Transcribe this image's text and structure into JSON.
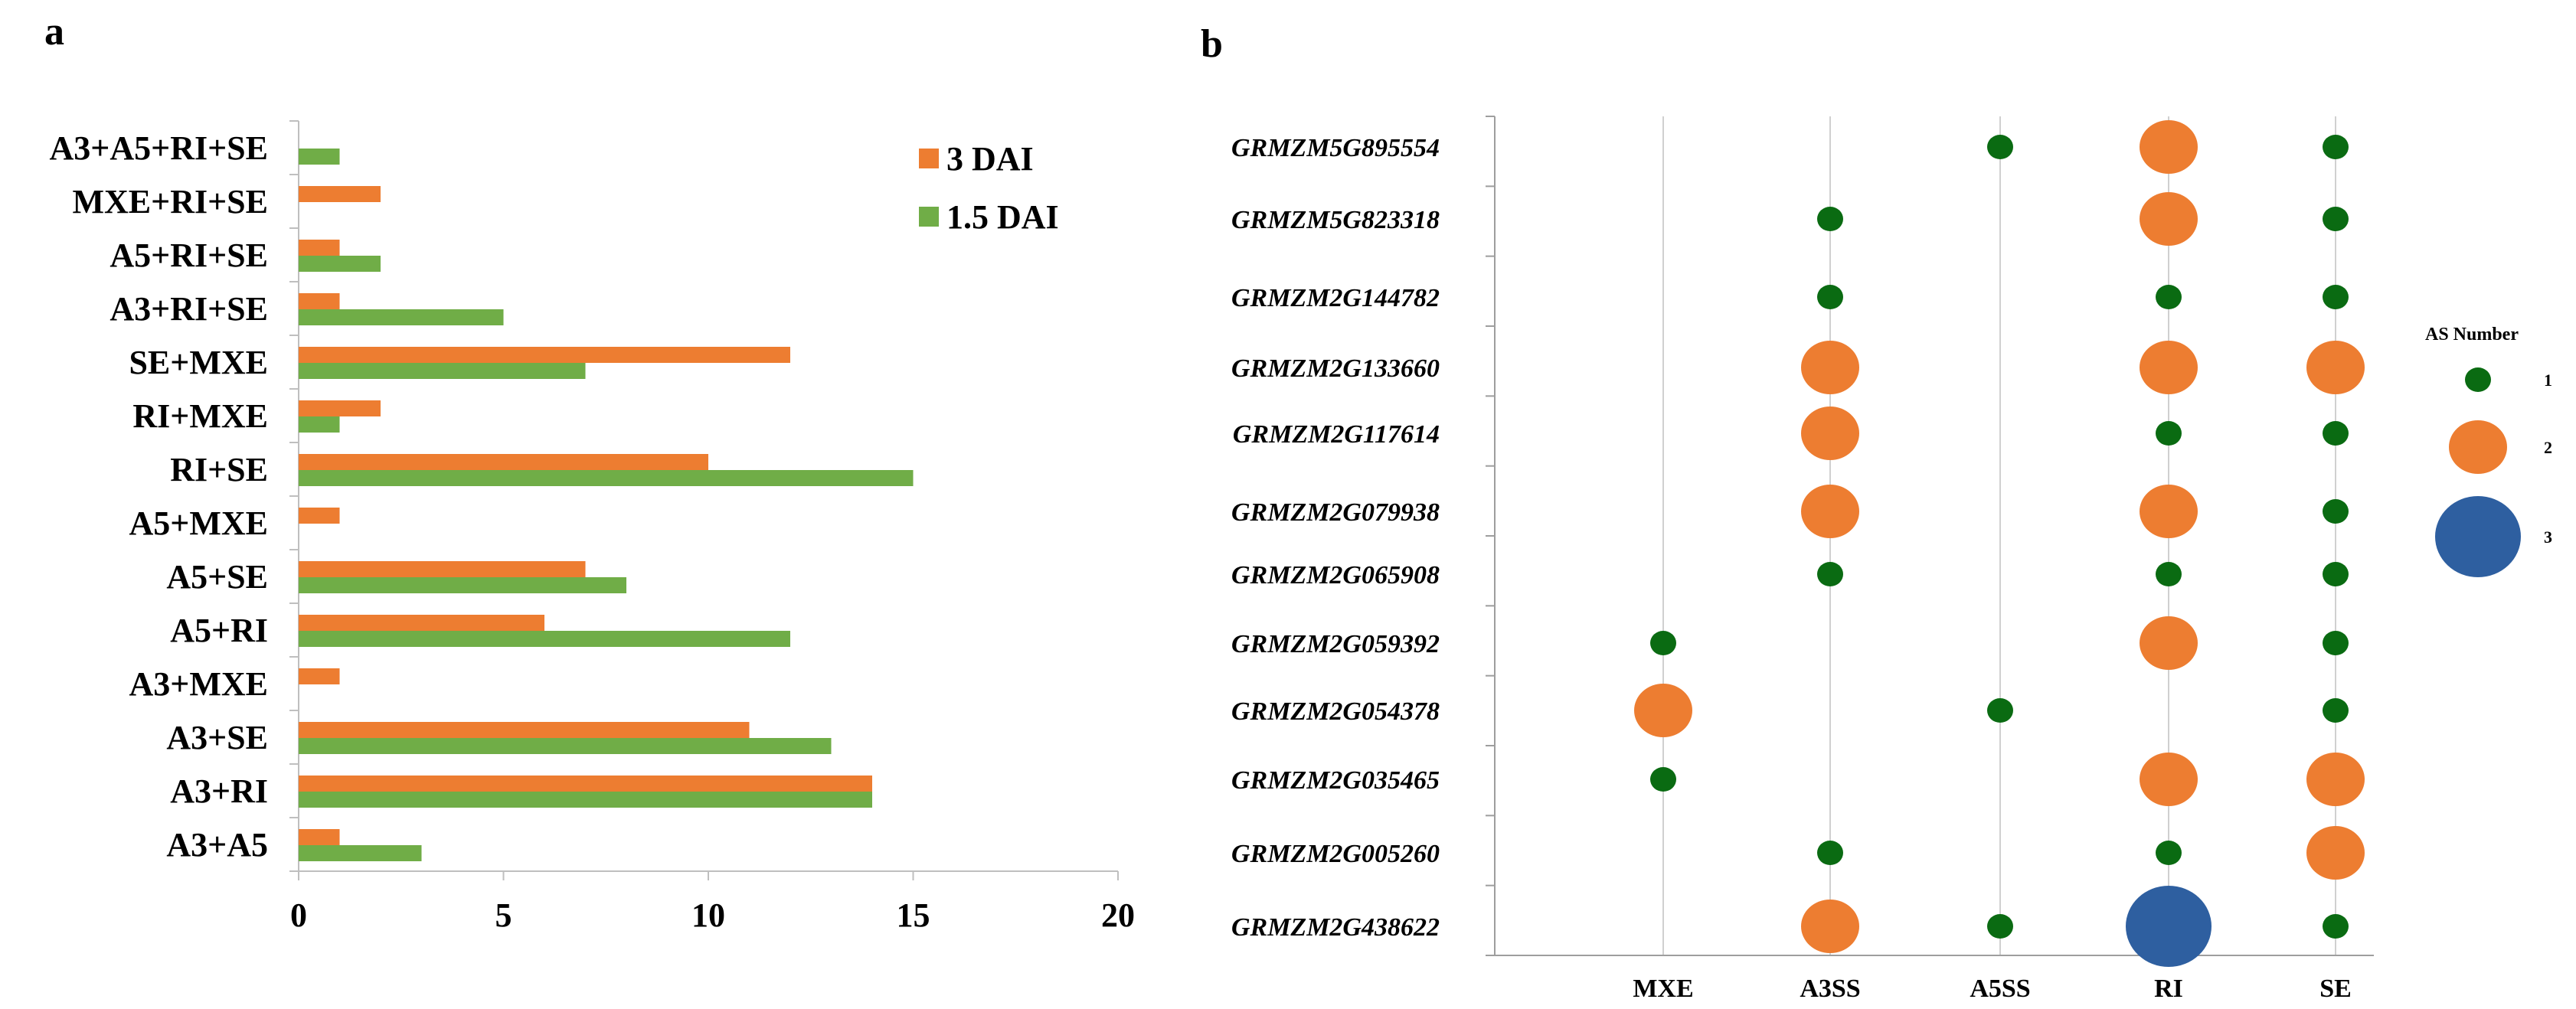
{
  "panels": {
    "a": "a",
    "b": "b"
  },
  "colors": {
    "orange": "#ED7D31",
    "green": "#70AD47",
    "dark_green": "#0A6B12",
    "blue": "#2E5FA0"
  },
  "chart_data": [
    {
      "id": "a",
      "type": "bar",
      "orientation": "horizontal",
      "categories": [
        "A3+A5+RI+SE",
        "MXE+RI+SE",
        "A5+RI+SE",
        "A3+RI+SE",
        "SE+MXE",
        "RI+MXE",
        "RI+SE",
        "A5+MXE",
        "A5+SE",
        "A5+RI",
        "A3+MXE",
        "A3+SE",
        "A3+RI",
        "A3+A5"
      ],
      "series": [
        {
          "name": "3 DAI",
          "color": "#ED7D31",
          "values": [
            0,
            2,
            1,
            1,
            12,
            2,
            10,
            1,
            7,
            6,
            1,
            11,
            14,
            1
          ]
        },
        {
          "name": "1.5 DAI",
          "color": "#70AD47",
          "values": [
            1,
            0,
            2,
            5,
            7,
            1,
            15,
            0,
            8,
            12,
            0,
            13,
            14,
            3
          ]
        }
      ],
      "xlim": [
        0,
        20
      ],
      "xticks": [
        0,
        5,
        10,
        15,
        20
      ],
      "legend": "top-right",
      "grid": false
    },
    {
      "id": "b",
      "type": "scatter",
      "subtype": "bubble",
      "genes": [
        "GRMZM5G895554",
        "GRMZM5G823318",
        "GRMZM2G144782",
        "GRMZM2G133660",
        "GRMZM2G117614",
        "GRMZM2G079938",
        "GRMZM2G065908",
        "GRMZM2G059392",
        "GRMZM2G054378",
        "GRMZM2G035465",
        "GRMZM2G005260",
        "GRMZM2G438622"
      ],
      "categories": [
        "MXE",
        "A3SS",
        "A5SS",
        "RI",
        "SE"
      ],
      "values": [
        [
          0,
          0,
          1,
          2,
          1
        ],
        [
          0,
          1,
          0,
          2,
          1
        ],
        [
          0,
          1,
          0,
          1,
          1
        ],
        [
          0,
          2,
          0,
          2,
          2
        ],
        [
          0,
          2,
          0,
          1,
          1
        ],
        [
          0,
          2,
          0,
          2,
          1
        ],
        [
          0,
          1,
          0,
          1,
          1
        ],
        [
          1,
          0,
          0,
          2,
          1
        ],
        [
          2,
          0,
          1,
          0,
          1
        ],
        [
          1,
          0,
          0,
          2,
          2
        ],
        [
          0,
          1,
          0,
          1,
          2
        ],
        [
          0,
          2,
          1,
          3,
          1
        ]
      ],
      "legend": {
        "title": "AS Number",
        "levels": [
          1,
          2,
          3
        ],
        "labels": [
          "1",
          "2",
          "3"
        ],
        "colors": [
          "#0A6B12",
          "#ED7D31",
          "#2E5FA0"
        ],
        "placement": "right"
      },
      "grid": "vertical"
    }
  ]
}
